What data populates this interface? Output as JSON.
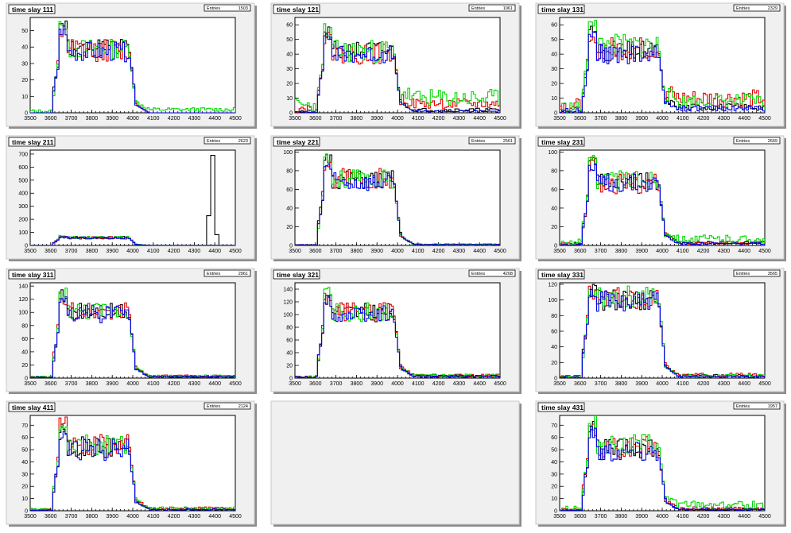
{
  "canvas": {
    "background": "#ffffff",
    "pad_color": "#f0f0f0"
  },
  "series_colors": {
    "black": "#000000",
    "red": "#e00000",
    "green": "#00d800",
    "blue": "#0000e0"
  },
  "chart_data": [
    {
      "id": "111",
      "type": "histogram",
      "title": "time slay 111",
      "stats": {
        "label": "Entries",
        "value": "1503"
      },
      "xlim": [
        3500,
        4500
      ],
      "ylim": [
        0,
        58
      ],
      "xticks": [
        3500,
        3600,
        3700,
        3800,
        3900,
        4000,
        4100,
        4200,
        4300,
        4400,
        4500
      ],
      "yticks": [
        0,
        10,
        20,
        30,
        40,
        50
      ],
      "series": [
        {
          "color": "black",
          "level": 40,
          "left": 58,
          "right": 0,
          "noise": 6,
          "seed": 11,
          "spike_x": null,
          "spike_h": 0
        },
        {
          "color": "red",
          "level": 38,
          "left": 55,
          "right": 0,
          "noise": 7,
          "seed": 12,
          "spike_x": null,
          "spike_h": 0
        },
        {
          "color": "green",
          "level": 39,
          "left": 56,
          "right": 2,
          "noise": 6,
          "seed": 13,
          "spike_x": null,
          "spike_h": 0
        },
        {
          "color": "blue",
          "level": 37,
          "left": 54,
          "right": 0,
          "noise": 6,
          "seed": 14,
          "spike_x": null,
          "spike_h": 0
        }
      ]
    },
    {
      "id": "121",
      "type": "histogram",
      "title": "time slay 121",
      "stats": {
        "label": "Entries",
        "value": "1061"
      },
      "xlim": [
        3500,
        4500
      ],
      "ylim": [
        0,
        65
      ],
      "xticks": [
        3500,
        3600,
        3700,
        3800,
        3900,
        4000,
        4100,
        4200,
        4300,
        4400,
        4500
      ],
      "yticks": [
        0,
        10,
        20,
        30,
        40,
        50,
        60
      ],
      "series": [
        {
          "color": "black",
          "level": 42,
          "left": 60,
          "right": 2,
          "noise": 7,
          "seed": 21,
          "spike_x": null,
          "spike_h": 0
        },
        {
          "color": "red",
          "level": 40,
          "left": 55,
          "right": 6,
          "noise": 7,
          "seed": 22,
          "spike_x": null,
          "spike_h": 0
        },
        {
          "color": "green",
          "level": 42,
          "left": 62,
          "right": 10,
          "noise": 8,
          "seed": 23,
          "spike_x": null,
          "spike_h": 0
        },
        {
          "color": "blue",
          "level": 40,
          "left": 56,
          "right": 1,
          "noise": 6,
          "seed": 24,
          "spike_x": null,
          "spike_h": 0
        }
      ]
    },
    {
      "id": "131",
      "type": "histogram",
      "title": "time slay 131",
      "stats": {
        "label": "Entries",
        "value": "2329"
      },
      "xlim": [
        3500,
        4500
      ],
      "ylim": [
        0,
        65
      ],
      "xticks": [
        3500,
        3600,
        3700,
        3800,
        3900,
        4000,
        4100,
        4200,
        4300,
        4400,
        4500
      ],
      "yticks": [
        0,
        10,
        20,
        30,
        40,
        50,
        60
      ],
      "series": [
        {
          "color": "black",
          "level": 42,
          "left": 62,
          "right": 4,
          "noise": 7,
          "seed": 31,
          "spike_x": null,
          "spike_h": 0
        },
        {
          "color": "red",
          "level": 44,
          "left": 58,
          "right": 10,
          "noise": 8,
          "seed": 32,
          "spike_x": null,
          "spike_h": 0
        },
        {
          "color": "green",
          "level": 46,
          "left": 64,
          "right": 8,
          "noise": 8,
          "seed": 33,
          "spike_x": null,
          "spike_h": 0
        },
        {
          "color": "blue",
          "level": 40,
          "left": 58,
          "right": 3,
          "noise": 7,
          "seed": 34,
          "spike_x": null,
          "spike_h": 0
        }
      ]
    },
    {
      "id": "211",
      "type": "histogram",
      "title": "time slay 211",
      "stats": {
        "label": "Entries",
        "value": "2623"
      },
      "xlim": [
        3500,
        4500
      ],
      "ylim": [
        0,
        730
      ],
      "xticks": [
        3500,
        3600,
        3700,
        3800,
        3900,
        4000,
        4100,
        4200,
        4300,
        4400,
        4500
      ],
      "yticks": [
        0,
        100,
        200,
        300,
        400,
        500,
        600,
        700
      ],
      "series": [
        {
          "color": "black",
          "level": 60,
          "left": 75,
          "right": 0,
          "noise": 10,
          "seed": 41,
          "spike_x": 4390,
          "spike_h": 690
        },
        {
          "color": "red",
          "level": 58,
          "left": 70,
          "right": 1,
          "noise": 10,
          "seed": 42,
          "spike_x": null,
          "spike_h": 0
        },
        {
          "color": "green",
          "level": 62,
          "left": 80,
          "right": 1,
          "noise": 10,
          "seed": 43,
          "spike_x": null,
          "spike_h": 0
        },
        {
          "color": "blue",
          "level": 57,
          "left": 68,
          "right": 0,
          "noise": 9,
          "seed": 44,
          "spike_x": null,
          "spike_h": 0
        }
      ]
    },
    {
      "id": "221",
      "type": "histogram",
      "title": "time slay 221",
      "stats": {
        "label": "Entries",
        "value": "2561"
      },
      "xlim": [
        3500,
        4500
      ],
      "ylim": [
        0,
        102
      ],
      "xticks": [
        3500,
        3600,
        3700,
        3800,
        3900,
        4000,
        4100,
        4200,
        4300,
        4400,
        4500
      ],
      "yticks": [
        0,
        20,
        40,
        60,
        80,
        100
      ],
      "series": [
        {
          "color": "black",
          "level": 70,
          "left": 100,
          "right": 1,
          "noise": 10,
          "seed": 51,
          "spike_x": null,
          "spike_h": 0
        },
        {
          "color": "red",
          "level": 72,
          "left": 95,
          "right": 1,
          "noise": 11,
          "seed": 52,
          "spike_x": null,
          "spike_h": 0
        },
        {
          "color": "green",
          "level": 71,
          "left": 98,
          "right": 1,
          "noise": 10,
          "seed": 53,
          "spike_x": null,
          "spike_h": 0
        },
        {
          "color": "blue",
          "level": 68,
          "left": 92,
          "right": 1,
          "noise": 10,
          "seed": 54,
          "spike_x": null,
          "spike_h": 0
        }
      ]
    },
    {
      "id": "231",
      "type": "histogram",
      "title": "time slay 231",
      "stats": {
        "label": "Entries",
        "value": "2669"
      },
      "xlim": [
        3500,
        4500
      ],
      "ylim": [
        0,
        102
      ],
      "xticks": [
        3500,
        3600,
        3700,
        3800,
        3900,
        4000,
        4100,
        4200,
        4300,
        4400,
        4500
      ],
      "yticks": [
        0,
        20,
        40,
        60,
        80,
        100
      ],
      "series": [
        {
          "color": "black",
          "level": 68,
          "left": 100,
          "right": 3,
          "noise": 10,
          "seed": 61,
          "spike_x": null,
          "spike_h": 0
        },
        {
          "color": "red",
          "level": 66,
          "left": 95,
          "right": 3,
          "noise": 11,
          "seed": 62,
          "spike_x": null,
          "spike_h": 0
        },
        {
          "color": "green",
          "level": 70,
          "left": 98,
          "right": 7,
          "noise": 10,
          "seed": 63,
          "spike_x": null,
          "spike_h": 0
        },
        {
          "color": "blue",
          "level": 67,
          "left": 94,
          "right": 2,
          "noise": 10,
          "seed": 64,
          "spike_x": null,
          "spike_h": 0
        }
      ]
    },
    {
      "id": "311",
      "type": "histogram",
      "title": "time slay 311",
      "stats": {
        "label": "Entries",
        "value": "2961"
      },
      "xlim": [
        3500,
        4500
      ],
      "ylim": [
        0,
        145
      ],
      "xticks": [
        3500,
        3600,
        3700,
        3800,
        3900,
        4000,
        4100,
        4200,
        4300,
        4400,
        4500
      ],
      "yticks": [
        0,
        20,
        40,
        60,
        80,
        100,
        120,
        140
      ],
      "series": [
        {
          "color": "black",
          "level": 100,
          "left": 135,
          "right": 2,
          "noise": 14,
          "seed": 71,
          "spike_x": null,
          "spike_h": 0
        },
        {
          "color": "red",
          "level": 102,
          "left": 130,
          "right": 3,
          "noise": 15,
          "seed": 72,
          "spike_x": null,
          "spike_h": 0
        },
        {
          "color": "green",
          "level": 101,
          "left": 138,
          "right": 3,
          "noise": 14,
          "seed": 73,
          "spike_x": null,
          "spike_h": 0
        },
        {
          "color": "blue",
          "level": 98,
          "left": 128,
          "right": 2,
          "noise": 14,
          "seed": 74,
          "spike_x": null,
          "spike_h": 0
        }
      ]
    },
    {
      "id": "321",
      "type": "histogram",
      "title": "time slay 321",
      "stats": {
        "label": "Entries",
        "value": "4208"
      },
      "xlim": [
        3500,
        4500
      ],
      "ylim": [
        0,
        150
      ],
      "xticks": [
        3500,
        3600,
        3700,
        3800,
        3900,
        4000,
        4100,
        4200,
        4300,
        4400,
        4500
      ],
      "yticks": [
        0,
        20,
        40,
        60,
        80,
        100,
        120,
        140
      ],
      "series": [
        {
          "color": "black",
          "level": 103,
          "left": 140,
          "right": 3,
          "noise": 15,
          "seed": 81,
          "spike_x": null,
          "spike_h": 0
        },
        {
          "color": "red",
          "level": 105,
          "left": 135,
          "right": 4,
          "noise": 15,
          "seed": 82,
          "spike_x": null,
          "spike_h": 0
        },
        {
          "color": "green",
          "level": 104,
          "left": 148,
          "right": 4,
          "noise": 15,
          "seed": 83,
          "spike_x": null,
          "spike_h": 0
        },
        {
          "color": "blue",
          "level": 100,
          "left": 132,
          "right": 3,
          "noise": 14,
          "seed": 84,
          "spike_x": null,
          "spike_h": 0
        }
      ]
    },
    {
      "id": "331",
      "type": "histogram",
      "title": "time slay 331",
      "stats": {
        "label": "Entries",
        "value": "3565"
      },
      "xlim": [
        3500,
        4500
      ],
      "ylim": [
        0,
        122
      ],
      "xticks": [
        3500,
        3600,
        3700,
        3800,
        3900,
        4000,
        4100,
        4200,
        4300,
        4400,
        4500
      ],
      "yticks": [
        0,
        20,
        40,
        60,
        80,
        100,
        120
      ],
      "series": [
        {
          "color": "black",
          "level": 100,
          "left": 122,
          "right": 3,
          "noise": 14,
          "seed": 91,
          "spike_x": null,
          "spike_h": 0
        },
        {
          "color": "red",
          "level": 102,
          "left": 120,
          "right": 4,
          "noise": 14,
          "seed": 92,
          "spike_x": null,
          "spike_h": 0
        },
        {
          "color": "green",
          "level": 104,
          "left": 122,
          "right": 3,
          "noise": 14,
          "seed": 93,
          "spike_x": null,
          "spike_h": 0
        },
        {
          "color": "blue",
          "level": 98,
          "left": 118,
          "right": 2,
          "noise": 14,
          "seed": 94,
          "spike_x": null,
          "spike_h": 0
        }
      ]
    },
    {
      "id": "411",
      "type": "histogram",
      "title": "time slay 411",
      "stats": {
        "label": "Entries",
        "value": "2124"
      },
      "xlim": [
        3500,
        4500
      ],
      "ylim": [
        0,
        78
      ],
      "xticks": [
        3500,
        3600,
        3700,
        3800,
        3900,
        4000,
        4100,
        4200,
        4300,
        4400,
        4500
      ],
      "yticks": [
        0,
        10,
        20,
        30,
        40,
        50,
        60,
        70
      ],
      "series": [
        {
          "color": "black",
          "level": 52,
          "left": 75,
          "right": 1,
          "noise": 9,
          "seed": 101,
          "spike_x": null,
          "spike_h": 0
        },
        {
          "color": "red",
          "level": 54,
          "left": 78,
          "right": 2,
          "noise": 9,
          "seed": 102,
          "spike_x": null,
          "spike_h": 0
        },
        {
          "color": "green",
          "level": 53,
          "left": 72,
          "right": 2,
          "noise": 9,
          "seed": 103,
          "spike_x": null,
          "spike_h": 0
        },
        {
          "color": "blue",
          "level": 50,
          "left": 68,
          "right": 1,
          "noise": 9,
          "seed": 104,
          "spike_x": null,
          "spike_h": 0
        }
      ]
    },
    null,
    {
      "id": "431",
      "type": "histogram",
      "title": "time slay 431",
      "stats": {
        "label": "Entries",
        "value": "1957"
      },
      "xlim": [
        3500,
        4500
      ],
      "ylim": [
        0,
        78
      ],
      "xticks": [
        3500,
        3600,
        3700,
        3800,
        3900,
        4000,
        4100,
        4200,
        4300,
        4400,
        4500
      ],
      "yticks": [
        0,
        10,
        20,
        30,
        40,
        50,
        60,
        70
      ],
      "series": [
        {
          "color": "black",
          "level": 50,
          "left": 76,
          "right": 1,
          "noise": 9,
          "seed": 111,
          "spike_x": null,
          "spike_h": 0
        },
        {
          "color": "red",
          "level": 52,
          "left": 72,
          "right": 2,
          "noise": 9,
          "seed": 112,
          "spike_x": null,
          "spike_h": 0
        },
        {
          "color": "green",
          "level": 54,
          "left": 78,
          "right": 5,
          "noise": 9,
          "seed": 113,
          "spike_x": null,
          "spike_h": 0
        },
        {
          "color": "blue",
          "level": 49,
          "left": 70,
          "right": 1,
          "noise": 9,
          "seed": 114,
          "spike_x": null,
          "spike_h": 0
        }
      ]
    }
  ]
}
